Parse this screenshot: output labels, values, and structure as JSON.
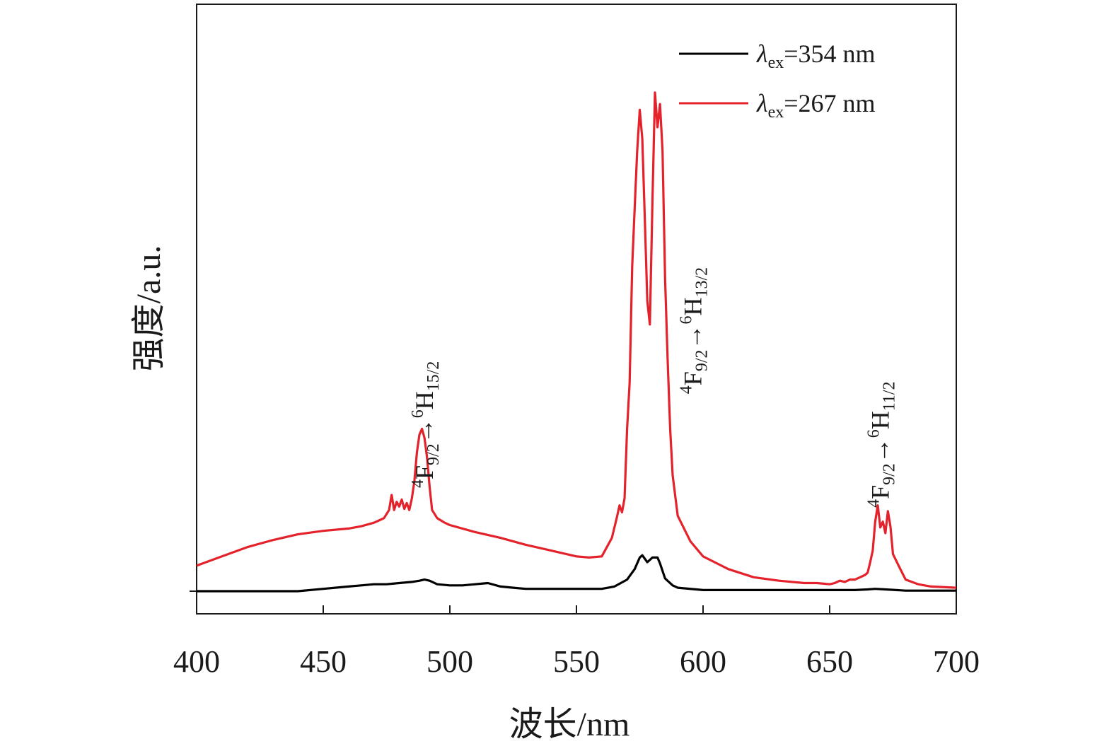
{
  "chart_data": {
    "type": "line",
    "xlabel": "波长/nm",
    "ylabel": "强度/a.u.",
    "xlim": [
      400,
      700
    ],
    "ylim": [
      -2,
      38
    ],
    "xticks": [
      400,
      450,
      500,
      550,
      600,
      650,
      700
    ],
    "xtick_labels": [
      "400",
      "450",
      "500",
      "550",
      "600",
      "650",
      "700"
    ],
    "legend": {
      "position": "top-right",
      "entries": [
        {
          "prefix": "λ",
          "sub": "ex",
          "suffix": "=354 nm"
        },
        {
          "prefix": "λ",
          "sub": "ex",
          "suffix": "=267 nm"
        }
      ]
    },
    "annotations": [
      {
        "x": 490,
        "y": 8.9,
        "rotation": -90,
        "upper": "4",
        "f": "F",
        "fsub": "9/2",
        "arrow": "→",
        "upper2": "6",
        "h": "H",
        "hsub": "15/2"
      },
      {
        "x": 596,
        "y": 17,
        "rotation": -90,
        "upper": "4",
        "f": "F",
        "fsub": "9/2",
        "arrow": "→",
        "upper2": "6",
        "h": "H",
        "hsub": "13/2"
      },
      {
        "x": 670,
        "y": 7.2,
        "rotation": -90,
        "upper": "4",
        "f": "F",
        "fsub": "9/2",
        "arrow": "→",
        "upper2": "6",
        "h": "H",
        "hsub": "11/2"
      }
    ],
    "series": [
      {
        "color": "#000000",
        "x": [
          400,
          440,
          450,
          460,
          465,
          470,
          475,
          480,
          485,
          488,
          490,
          492,
          495,
          500,
          505,
          510,
          515,
          520,
          525,
          530,
          540,
          550,
          560,
          565,
          570,
          573,
          575,
          576,
          578,
          580,
          582,
          583,
          585,
          588,
          590,
          600,
          620,
          640,
          660,
          665,
          668,
          672,
          680,
          700
        ],
        "y": [
          0,
          0,
          0.2,
          0.4,
          0.5,
          0.6,
          0.6,
          0.7,
          0.8,
          0.9,
          1.0,
          0.9,
          0.6,
          0.5,
          0.5,
          0.6,
          0.7,
          0.4,
          0.3,
          0.2,
          0.2,
          0.2,
          0.2,
          0.4,
          1.0,
          1.9,
          2.9,
          3.1,
          2.5,
          2.9,
          2.9,
          2.4,
          1.1,
          0.5,
          0.3,
          0.1,
          0.1,
          0.1,
          0.1,
          0.15,
          0.2,
          0.15,
          0.05,
          0.05
        ]
      },
      {
        "color": "#e3222b",
        "x": [
          400,
          410,
          420,
          430,
          440,
          450,
          460,
          465,
          470,
          472,
          474,
          476,
          477,
          478,
          479,
          480,
          481,
          482,
          483,
          484,
          485,
          486,
          487,
          488,
          489,
          490,
          491,
          492,
          493,
          495,
          498,
          500,
          510,
          520,
          530,
          540,
          550,
          555,
          560,
          562,
          564,
          566,
          567,
          568,
          569,
          570,
          571,
          572,
          573,
          574,
          575,
          576,
          577,
          578,
          579,
          580,
          581,
          582,
          583,
          584,
          585,
          586,
          587,
          588,
          590,
          595,
          600,
          610,
          620,
          630,
          640,
          645,
          650,
          652,
          654,
          656,
          658,
          660,
          662,
          664,
          665,
          666,
          667,
          668,
          669,
          670,
          671,
          672,
          673,
          674,
          675,
          677,
          680,
          685,
          690,
          700
        ],
        "y": [
          2.2,
          3.0,
          3.8,
          4.4,
          4.9,
          5.2,
          5.4,
          5.6,
          5.9,
          6.1,
          6.3,
          7.0,
          8.3,
          7.0,
          7.7,
          7.3,
          7.9,
          7.1,
          7.6,
          7.0,
          8.0,
          9.5,
          12.0,
          13.5,
          14.0,
          13.2,
          11.5,
          9.0,
          7.0,
          6.3,
          5.9,
          5.7,
          5.1,
          4.6,
          4.0,
          3.5,
          3.0,
          2.9,
          3.0,
          3.8,
          4.6,
          6.4,
          7.4,
          6.8,
          8.0,
          14.0,
          18.0,
          28.0,
          33.0,
          38.0,
          41.5,
          39.0,
          32.0,
          25.0,
          23.0,
          33.5,
          43.0,
          40.0,
          42.0,
          38.0,
          27.0,
          20.0,
          14.0,
          10.0,
          6.5,
          4.3,
          3.0,
          1.9,
          1.2,
          0.9,
          0.7,
          0.7,
          0.6,
          0.7,
          0.9,
          0.8,
          1.0,
          1.0,
          1.2,
          1.4,
          1.6,
          2.5,
          3.5,
          6.0,
          7.4,
          5.5,
          6.0,
          5.0,
          6.9,
          5.6,
          3.2,
          2.3,
          1.0,
          0.6,
          0.4,
          0.3
        ]
      }
    ]
  }
}
